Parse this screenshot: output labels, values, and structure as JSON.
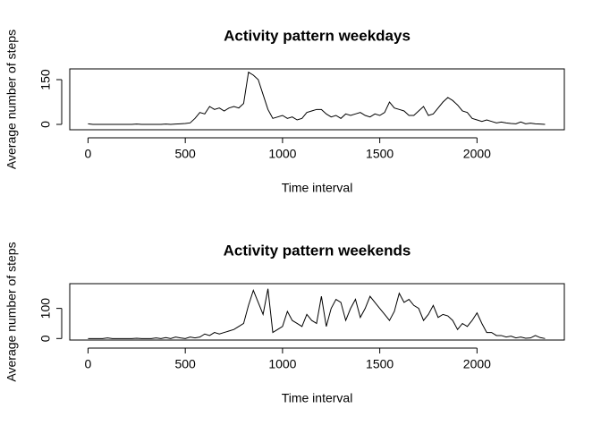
{
  "chart_data": [
    {
      "type": "line",
      "title": "Activity pattern weekdays",
      "x_label": "Time interval",
      "y_label": "Average number of steps",
      "x": [
        0,
        25,
        50,
        75,
        100,
        125,
        150,
        175,
        200,
        225,
        250,
        275,
        300,
        325,
        350,
        375,
        400,
        425,
        450,
        475,
        500,
        525,
        550,
        575,
        600,
        625,
        650,
        675,
        700,
        725,
        750,
        775,
        800,
        825,
        850,
        875,
        900,
        925,
        950,
        975,
        1000,
        1025,
        1050,
        1075,
        1100,
        1125,
        1150,
        1175,
        1200,
        1225,
        1250,
        1275,
        1300,
        1325,
        1350,
        1375,
        1400,
        1425,
        1450,
        1475,
        1500,
        1525,
        1550,
        1575,
        1600,
        1625,
        1650,
        1675,
        1700,
        1725,
        1750,
        1775,
        1800,
        1825,
        1850,
        1875,
        1900,
        1925,
        1950,
        1975,
        2000,
        2025,
        2050,
        2075,
        2100,
        2125,
        2150,
        2175,
        2200,
        2225,
        2250,
        2275,
        2300,
        2325,
        2350
      ],
      "series": [
        {
          "color": "#000000",
          "values": [
            2,
            0,
            0,
            0,
            0,
            0,
            0,
            0,
            0,
            0,
            1,
            0,
            0,
            0,
            0,
            0,
            1,
            0,
            1,
            2,
            3,
            5,
            20,
            40,
            35,
            60,
            50,
            55,
            45,
            55,
            60,
            55,
            70,
            175,
            165,
            150,
            100,
            50,
            20,
            25,
            30,
            20,
            25,
            15,
            20,
            40,
            45,
            50,
            50,
            35,
            25,
            30,
            20,
            35,
            30,
            35,
            40,
            30,
            25,
            35,
            30,
            40,
            75,
            55,
            50,
            45,
            30,
            30,
            45,
            60,
            30,
            35,
            55,
            75,
            90,
            80,
            65,
            45,
            40,
            20,
            15,
            10,
            15,
            10,
            5,
            8,
            5,
            3,
            2,
            8,
            2,
            4,
            2,
            1,
            0
          ]
        }
      ],
      "xlim": [
        -94,
        2449
      ],
      "xticks": [
        0,
        500,
        1000,
        1500,
        2000
      ],
      "ylim": [
        -18,
        186
      ],
      "yticks": [
        0,
        150
      ]
    },
    {
      "type": "line",
      "title": "Activity pattern weekends",
      "x_label": "Time interval",
      "y_label": "Average number of steps",
      "x": [
        0,
        25,
        50,
        75,
        100,
        125,
        150,
        175,
        200,
        225,
        250,
        275,
        300,
        325,
        350,
        375,
        400,
        425,
        450,
        475,
        500,
        525,
        550,
        575,
        600,
        625,
        650,
        675,
        700,
        725,
        750,
        775,
        800,
        825,
        850,
        875,
        900,
        925,
        950,
        975,
        1000,
        1025,
        1050,
        1075,
        1100,
        1125,
        1150,
        1175,
        1200,
        1225,
        1250,
        1275,
        1300,
        1325,
        1350,
        1375,
        1400,
        1425,
        1450,
        1475,
        1500,
        1525,
        1550,
        1575,
        1600,
        1625,
        1650,
        1675,
        1700,
        1725,
        1750,
        1775,
        1800,
        1825,
        1850,
        1875,
        1900,
        1925,
        1950,
        1975,
        2000,
        2025,
        2050,
        2075,
        2100,
        2125,
        2150,
        2175,
        2200,
        2225,
        2250,
        2275,
        2300,
        2325,
        2350
      ],
      "series": [
        {
          "color": "#000000",
          "values": [
            0,
            0,
            0,
            0,
            2,
            0,
            0,
            0,
            0,
            0,
            1,
            0,
            0,
            0,
            2,
            0,
            3,
            0,
            5,
            2,
            0,
            5,
            2,
            5,
            15,
            10,
            20,
            15,
            20,
            25,
            30,
            40,
            50,
            110,
            160,
            120,
            80,
            165,
            20,
            30,
            40,
            90,
            60,
            50,
            40,
            80,
            60,
            50,
            140,
            40,
            100,
            130,
            120,
            60,
            100,
            130,
            70,
            100,
            140,
            120,
            100,
            80,
            60,
            90,
            150,
            120,
            130,
            110,
            100,
            60,
            80,
            110,
            70,
            80,
            75,
            60,
            30,
            50,
            40,
            60,
            85,
            50,
            20,
            20,
            10,
            10,
            5,
            8,
            2,
            5,
            1,
            2,
            10,
            3,
            0
          ]
        }
      ],
      "xlim": [
        -94,
        2449
      ],
      "xticks": [
        0,
        500,
        1000,
        1500,
        2000
      ],
      "ylim": [
        -5,
        182
      ],
      "yticks": [
        0,
        100
      ]
    }
  ]
}
